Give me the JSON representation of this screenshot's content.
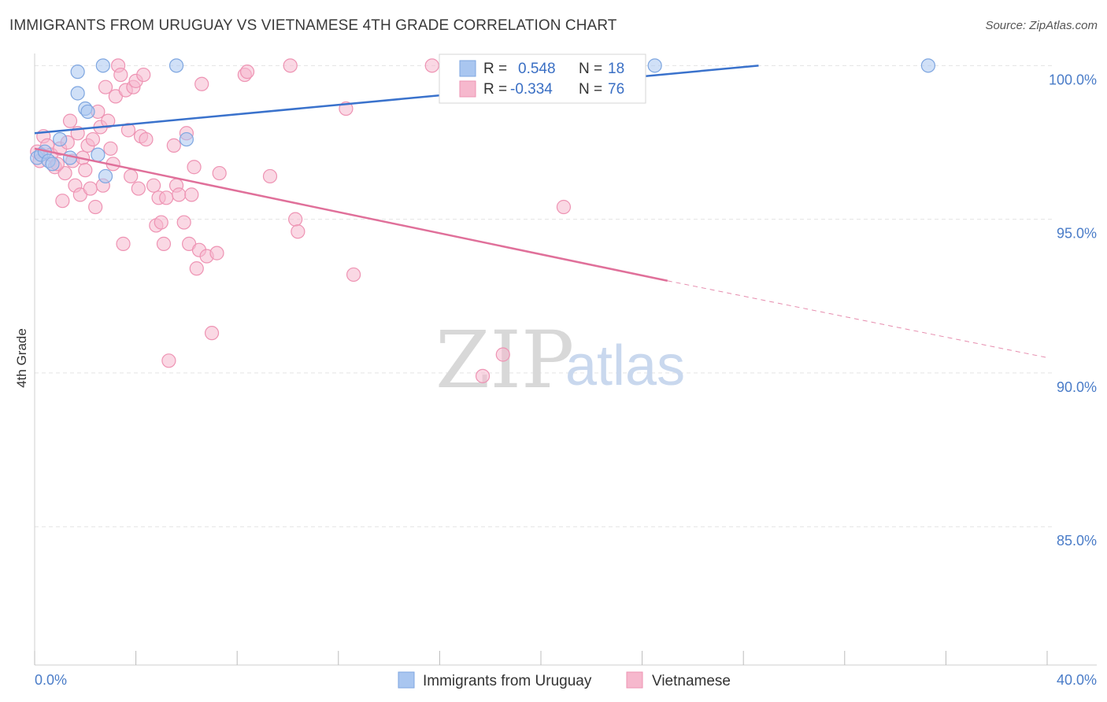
{
  "header": {
    "title": "IMMIGRANTS FROM URUGUAY VS VIETNAMESE 4TH GRADE CORRELATION CHART",
    "source": "Source: ZipAtlas.com"
  },
  "watermark": {
    "zip": "ZIP",
    "atlas": "atlas"
  },
  "stats": {
    "r_label": "R =",
    "n_label": "N =",
    "rows": [
      {
        "r": "0.548",
        "n": "18",
        "color": "#a9c6f0"
      },
      {
        "r": "-0.334",
        "n": "76",
        "color": "#f6b8cd"
      }
    ]
  },
  "chart_data": {
    "type": "scatter",
    "title": "IMMIGRANTS FROM URUGUAY VS VIETNAMESE 4TH GRADE CORRELATION CHART",
    "ylabel": "4th Grade",
    "xlabel": "",
    "xlim": [
      0,
      40
    ],
    "ylim": [
      80.5,
      100.7
    ],
    "x_tick_labels": [
      {
        "value": 0,
        "label": "0.0%"
      },
      {
        "value": 40,
        "label": "40.0%"
      }
    ],
    "y_tick_labels": [
      {
        "value": 100,
        "label": "100.0%"
      },
      {
        "value": 95,
        "label": "95.0%"
      },
      {
        "value": 90,
        "label": "90.0%"
      },
      {
        "value": 85,
        "label": "85.0%"
      }
    ],
    "grid": true,
    "legend_position": "bottom-center",
    "series": [
      {
        "name": "Immigrants from Uruguay",
        "color": "#a9c6f0",
        "stroke": "#7ea6e0",
        "trend_color": "#3a72cc",
        "trend": {
          "x0": 0,
          "y0": 97.8,
          "x1": 28.6,
          "y1": 100.0,
          "dash_to": null
        },
        "points": [
          [
            0.1,
            97.0
          ],
          [
            0.25,
            97.1
          ],
          [
            0.4,
            97.2
          ],
          [
            0.55,
            96.9
          ],
          [
            0.7,
            96.8
          ],
          [
            1.0,
            97.6
          ],
          [
            1.4,
            97.0
          ],
          [
            1.7,
            99.8
          ],
          [
            1.7,
            99.1
          ],
          [
            2.0,
            98.6
          ],
          [
            2.1,
            98.5
          ],
          [
            2.5,
            97.1
          ],
          [
            2.7,
            100.0
          ],
          [
            2.8,
            96.4
          ],
          [
            5.6,
            100.0
          ],
          [
            6.0,
            97.6
          ],
          [
            24.5,
            100.0
          ],
          [
            35.3,
            100.0
          ]
        ]
      },
      {
        "name": "Vietnamese",
        "color": "#f6b8cd",
        "stroke": "#ee93b3",
        "trend_color": "#e0709a",
        "trend": {
          "x0": 0,
          "y0": 97.3,
          "x1": 25.0,
          "y1": 93.0,
          "dash_to": [
            40,
            90.5
          ]
        },
        "points": [
          [
            0.1,
            97.2
          ],
          [
            0.2,
            96.9
          ],
          [
            0.35,
            97.7
          ],
          [
            0.5,
            97.4
          ],
          [
            0.65,
            97.1
          ],
          [
            0.8,
            96.7
          ],
          [
            1.0,
            97.3
          ],
          [
            1.1,
            95.6
          ],
          [
            1.2,
            96.5
          ],
          [
            1.4,
            98.2
          ],
          [
            1.5,
            96.9
          ],
          [
            1.6,
            96.1
          ],
          [
            1.7,
            97.8
          ],
          [
            1.8,
            95.8
          ],
          [
            1.9,
            97.0
          ],
          [
            2.0,
            96.6
          ],
          [
            2.1,
            97.4
          ],
          [
            2.2,
            96.0
          ],
          [
            2.3,
            97.6
          ],
          [
            2.4,
            95.4
          ],
          [
            2.5,
            98.5
          ],
          [
            2.6,
            98.0
          ],
          [
            2.7,
            96.1
          ],
          [
            2.8,
            99.3
          ],
          [
            2.9,
            98.2
          ],
          [
            3.0,
            97.3
          ],
          [
            3.1,
            96.8
          ],
          [
            3.2,
            99.0
          ],
          [
            3.3,
            100.0
          ],
          [
            3.4,
            99.7
          ],
          [
            3.5,
            94.2
          ],
          [
            3.6,
            99.2
          ],
          [
            3.7,
            97.9
          ],
          [
            3.8,
            96.4
          ],
          [
            3.9,
            99.3
          ],
          [
            4.0,
            99.5
          ],
          [
            4.1,
            96.0
          ],
          [
            4.2,
            97.7
          ],
          [
            4.3,
            99.7
          ],
          [
            4.4,
            97.6
          ],
          [
            4.7,
            96.1
          ],
          [
            4.8,
            94.8
          ],
          [
            4.9,
            95.7
          ],
          [
            5.0,
            94.9
          ],
          [
            5.1,
            94.2
          ],
          [
            5.2,
            95.7
          ],
          [
            5.3,
            90.4
          ],
          [
            5.5,
            97.4
          ],
          [
            5.6,
            96.1
          ],
          [
            5.7,
            95.8
          ],
          [
            5.9,
            94.9
          ],
          [
            6.0,
            97.8
          ],
          [
            6.1,
            94.2
          ],
          [
            6.2,
            95.8
          ],
          [
            6.3,
            96.7
          ],
          [
            6.4,
            93.4
          ],
          [
            6.5,
            94.0
          ],
          [
            6.6,
            99.4
          ],
          [
            6.8,
            93.8
          ],
          [
            7.0,
            91.3
          ],
          [
            7.2,
            93.9
          ],
          [
            7.3,
            96.5
          ],
          [
            8.3,
            99.7
          ],
          [
            8.4,
            99.8
          ],
          [
            9.3,
            96.4
          ],
          [
            10.1,
            100.0
          ],
          [
            10.3,
            95.0
          ],
          [
            10.4,
            94.6
          ],
          [
            12.3,
            98.6
          ],
          [
            12.6,
            93.2
          ],
          [
            15.7,
            100.0
          ],
          [
            17.7,
            89.9
          ],
          [
            18.5,
            90.6
          ],
          [
            20.9,
            95.4
          ],
          [
            0.9,
            96.8
          ],
          [
            1.3,
            97.5
          ]
        ]
      }
    ]
  }
}
